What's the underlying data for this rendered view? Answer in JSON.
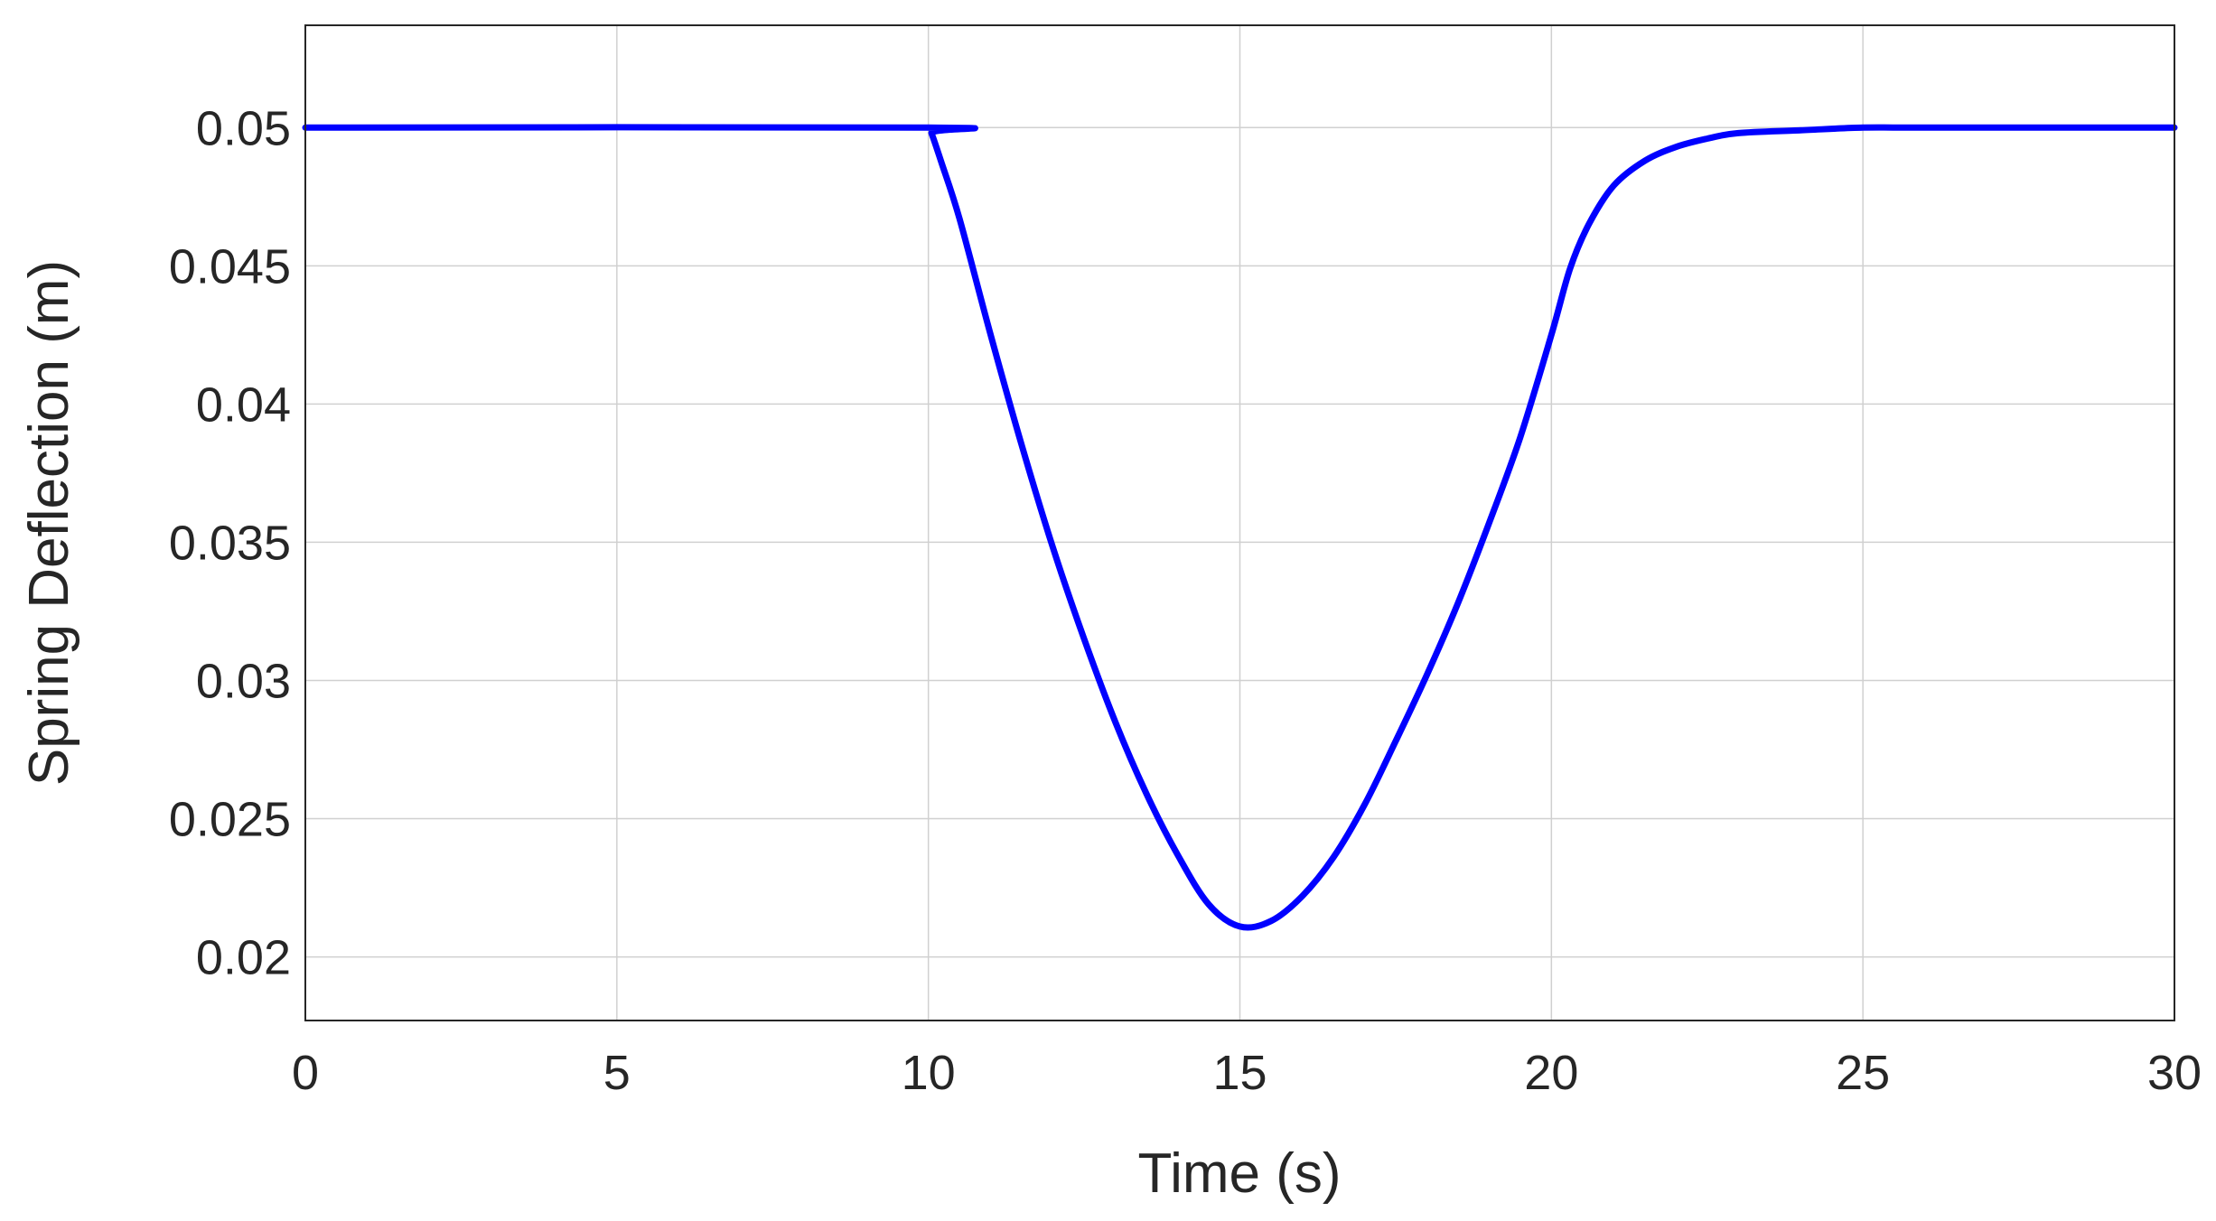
{
  "chart_data": {
    "type": "line",
    "title": "",
    "xlabel": "Time (s)",
    "ylabel": "Spring Deflection (m)",
    "xlim": [
      0,
      30
    ],
    "ylim": [
      0.0177,
      0.0537
    ],
    "xticks": [
      0,
      5,
      10,
      15,
      20,
      25,
      30
    ],
    "xtick_labels": [
      "0",
      "5",
      "10",
      "15",
      "20",
      "25",
      "30"
    ],
    "yticks": [
      0.02,
      0.025,
      0.03,
      0.035,
      0.04,
      0.045,
      0.05
    ],
    "ytick_labels": [
      "0.02",
      "0.025",
      "0.03",
      "0.035",
      "0.04",
      "0.045",
      "0.05"
    ],
    "grid": true,
    "legend": "none",
    "series": [
      {
        "color": "#0000ff",
        "x": [
          0,
          10,
          10.05,
          10.2,
          10.5,
          11,
          11.5,
          12,
          12.5,
          13,
          13.5,
          14,
          14.5,
          15,
          15.5,
          16,
          16.5,
          17,
          17.5,
          18,
          18.5,
          19,
          19.5,
          20,
          20.3,
          20.6,
          21,
          21.5,
          22,
          22.5,
          23,
          24,
          25,
          26,
          30
        ],
        "y": [
          0.05,
          0.05,
          0.0498,
          0.0488,
          0.0467,
          0.0425,
          0.0385,
          0.0348,
          0.0315,
          0.0285,
          0.0259,
          0.0237,
          0.0219,
          0.0211,
          0.0213,
          0.0222,
          0.0236,
          0.0255,
          0.0278,
          0.0302,
          0.0328,
          0.0357,
          0.0388,
          0.0425,
          0.0449,
          0.0465,
          0.0479,
          0.0488,
          0.0493,
          0.0496,
          0.0498,
          0.0499,
          0.05,
          0.05,
          0.05
        ]
      }
    ]
  }
}
